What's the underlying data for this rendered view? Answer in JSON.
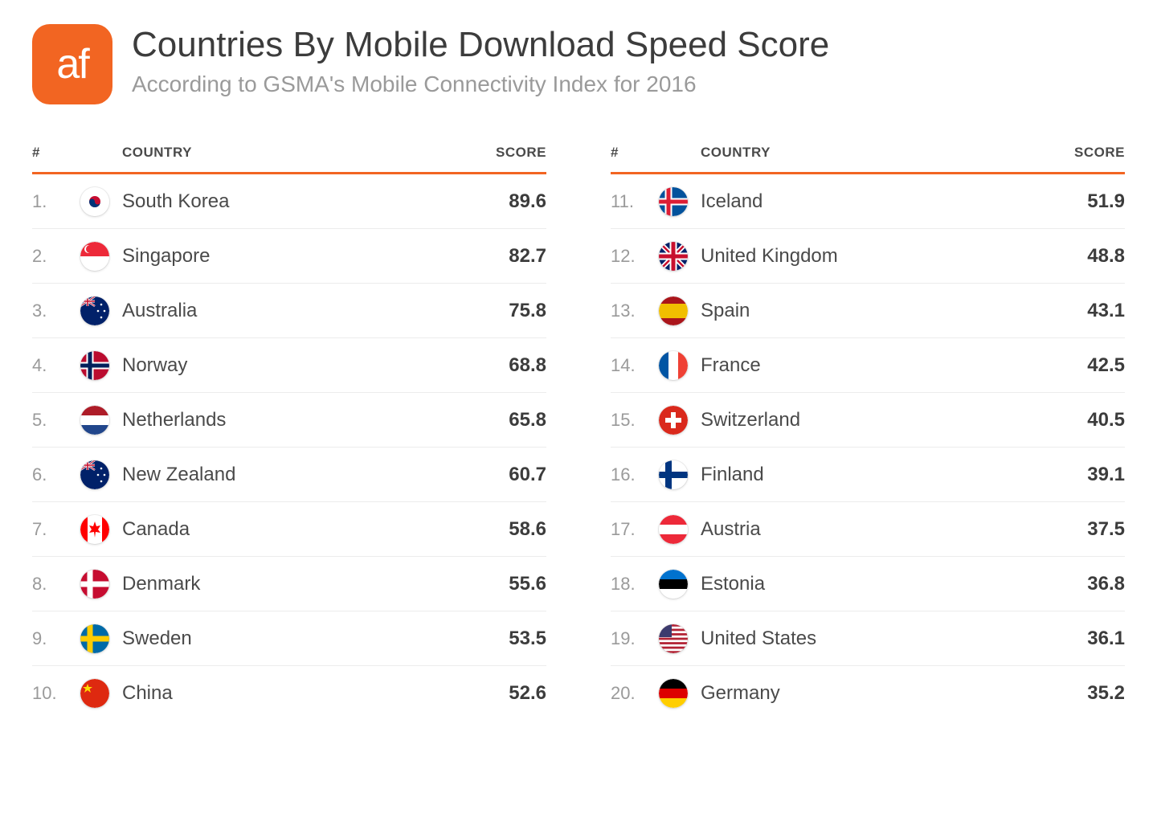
{
  "brand": {
    "logo_text": "af",
    "logo_bg": "#f26522",
    "accent_color": "#f26522"
  },
  "header": {
    "title": "Countries By Mobile Download Speed Score",
    "subtitle": "According to GSMA's Mobile Connectivity Index for 2016"
  },
  "table": {
    "columns": {
      "rank": "#",
      "country": "COUNTRY",
      "score": "SCORE"
    },
    "header_border_color": "#f26522",
    "row_border_color": "#ececec",
    "rank_color": "#9a9a9a",
    "text_color": "#4a4a4a",
    "score_color": "#3c3c3c",
    "title_fontsize": 44,
    "subtitle_fontsize": 28,
    "header_fontsize": 17,
    "row_fontsize": 24
  },
  "left": [
    {
      "rank": "1.",
      "country": "South Korea",
      "score": "89.6",
      "flag": "kr"
    },
    {
      "rank": "2.",
      "country": "Singapore",
      "score": "82.7",
      "flag": "sg"
    },
    {
      "rank": "3.",
      "country": "Australia",
      "score": "75.8",
      "flag": "au"
    },
    {
      "rank": "4.",
      "country": "Norway",
      "score": "68.8",
      "flag": "no"
    },
    {
      "rank": "5.",
      "country": "Netherlands",
      "score": "65.8",
      "flag": "nl"
    },
    {
      "rank": "6.",
      "country": "New Zealand",
      "score": "60.7",
      "flag": "nz"
    },
    {
      "rank": "7.",
      "country": "Canada",
      "score": "58.6",
      "flag": "ca"
    },
    {
      "rank": "8.",
      "country": "Denmark",
      "score": "55.6",
      "flag": "dk"
    },
    {
      "rank": "9.",
      "country": "Sweden",
      "score": "53.5",
      "flag": "se"
    },
    {
      "rank": "10.",
      "country": "China",
      "score": "52.6",
      "flag": "cn"
    }
  ],
  "right": [
    {
      "rank": "11.",
      "country": "Iceland",
      "score": "51.9",
      "flag": "is"
    },
    {
      "rank": "12.",
      "country": "United Kingdom",
      "score": "48.8",
      "flag": "gb"
    },
    {
      "rank": "13.",
      "country": "Spain",
      "score": "43.1",
      "flag": "es"
    },
    {
      "rank": "14.",
      "country": "France",
      "score": "42.5",
      "flag": "fr"
    },
    {
      "rank": "15.",
      "country": "Switzerland",
      "score": "40.5",
      "flag": "ch"
    },
    {
      "rank": "16.",
      "country": "Finland",
      "score": "39.1",
      "flag": "fi"
    },
    {
      "rank": "17.",
      "country": "Austria",
      "score": "37.5",
      "flag": "at"
    },
    {
      "rank": "18.",
      "country": "Estonia",
      "score": "36.8",
      "flag": "ee"
    },
    {
      "rank": "19.",
      "country": "United States",
      "score": "36.1",
      "flag": "us"
    },
    {
      "rank": "20.",
      "country": "Germany",
      "score": "35.2",
      "flag": "de"
    }
  ],
  "flags": {
    "kr": {
      "bg": "#ffffff",
      "center_top": "#c60c30",
      "center_bot": "#003478"
    },
    "sg": {
      "top": "#ed2939",
      "bot": "#ffffff"
    },
    "au": {
      "bg": "#012169"
    },
    "no": {
      "bg": "#ba0c2f",
      "cross1": "#ffffff",
      "cross2": "#00205b"
    },
    "nl": {
      "top": "#ae1c28",
      "mid": "#ffffff",
      "bot": "#21468b"
    },
    "nz": {
      "bg": "#012169"
    },
    "ca": {
      "bg": "#ffffff",
      "leaf": "#ff0000"
    },
    "dk": {
      "bg": "#c60c30",
      "cross": "#ffffff"
    },
    "se": {
      "bg": "#006aa7",
      "cross": "#fecc00"
    },
    "cn": {
      "bg": "#de2910",
      "star": "#ffde00"
    },
    "is": {
      "bg": "#02529c",
      "cross1": "#ffffff",
      "cross2": "#dc1e35"
    },
    "gb": {
      "bg": "#012169",
      "w": "#ffffff",
      "r": "#c8102e"
    },
    "es": {
      "top": "#aa151b",
      "mid": "#f1bf00",
      "bot": "#aa151b"
    },
    "fr": {
      "l": "#0055a4",
      "m": "#ffffff",
      "r": "#ef4135"
    },
    "ch": {
      "bg": "#da291c",
      "cross": "#ffffff"
    },
    "fi": {
      "bg": "#ffffff",
      "cross": "#003580"
    },
    "at": {
      "top": "#ed2939",
      "mid": "#ffffff",
      "bot": "#ed2939"
    },
    "ee": {
      "top": "#0072ce",
      "mid": "#000000",
      "bot": "#ffffff"
    },
    "us": {
      "stripes1": "#b22234",
      "stripes2": "#ffffff",
      "canton": "#3c3b6e"
    },
    "de": {
      "top": "#000000",
      "mid": "#dd0000",
      "bot": "#ffce00"
    }
  }
}
